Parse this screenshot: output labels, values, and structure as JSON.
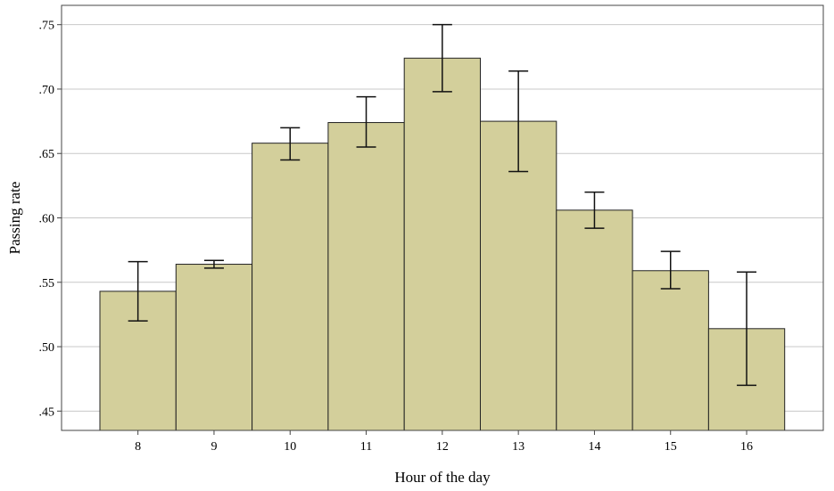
{
  "chart_data": {
    "type": "bar",
    "categories": [
      "8",
      "9",
      "10",
      "11",
      "12",
      "13",
      "14",
      "15",
      "16"
    ],
    "values": [
      0.543,
      0.564,
      0.658,
      0.674,
      0.724,
      0.675,
      0.606,
      0.559,
      0.514
    ],
    "error_low": [
      0.52,
      0.561,
      0.645,
      0.655,
      0.698,
      0.636,
      0.592,
      0.545,
      0.47
    ],
    "error_high": [
      0.566,
      0.567,
      0.67,
      0.694,
      0.75,
      0.714,
      0.62,
      0.574,
      0.558
    ],
    "xlabel": "Hour of the day",
    "ylabel": "Passing rate",
    "ylim": [
      0.435,
      0.765
    ],
    "yticks": [
      0.45,
      0.5,
      0.55,
      0.6,
      0.65,
      0.7,
      0.75
    ],
    "ytick_labels": [
      ".45",
      ".50",
      ".55",
      ".60",
      ".65",
      ".70",
      ".75"
    ],
    "grid": true,
    "bar_color": "#d3cf9b"
  }
}
